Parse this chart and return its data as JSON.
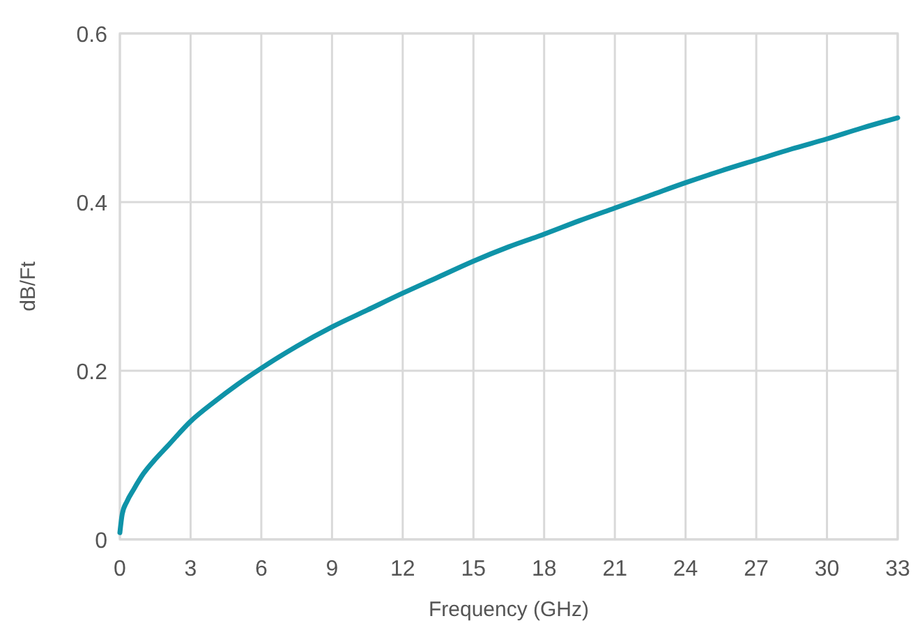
{
  "chart_data": {
    "type": "line",
    "xlabel": "Frequency (GHz)",
    "ylabel": "dB/Ft",
    "x": [
      0,
      0.1,
      0.3,
      0.6,
      1,
      1.5,
      2,
      3,
      4,
      5,
      6,
      7.5,
      9,
      10.5,
      12,
      13.5,
      15,
      16.5,
      18,
      19.5,
      21,
      22.5,
      24,
      25.5,
      27,
      28.5,
      30,
      31.5,
      33
    ],
    "series": [
      {
        "color": "#0f93a8",
        "values": [
          0.008,
          0.03,
          0.045,
          0.06,
          0.078,
          0.095,
          0.11,
          0.14,
          0.163,
          0.184,
          0.203,
          0.229,
          0.252,
          0.272,
          0.292,
          0.311,
          0.33,
          0.347,
          0.362,
          0.378,
          0.393,
          0.408,
          0.423,
          0.437,
          0.45,
          0.463,
          0.475,
          0.488,
          0.5
        ]
      }
    ],
    "xlim": [
      0,
      33
    ],
    "xticks": [
      0,
      3,
      6,
      9,
      12,
      15,
      18,
      21,
      24,
      27,
      30,
      33
    ],
    "ylim": [
      0,
      0.6
    ],
    "yticks": [
      0,
      0.2,
      0.4,
      0.6
    ],
    "grid": true,
    "line_style": "solid",
    "marker": "none"
  }
}
